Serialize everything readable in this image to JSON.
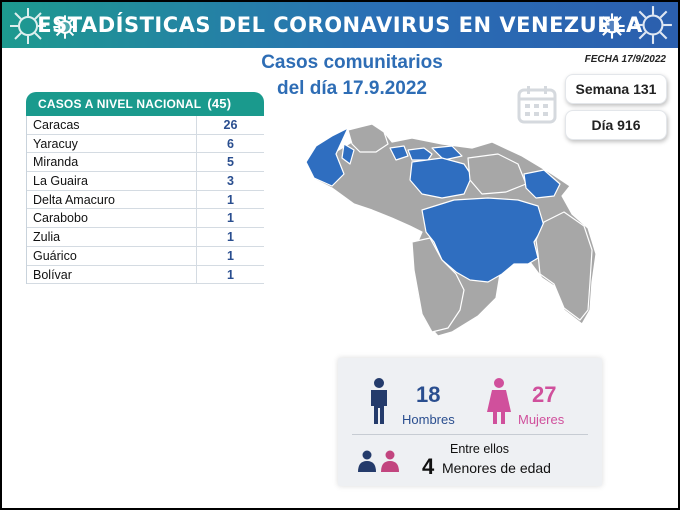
{
  "header": {
    "title": "ESTADÍSTICAS DEL CORONAVIRUS EN VENEZUELA"
  },
  "fecha": "FECHA 17/9/2022",
  "main_title": {
    "line1": "Casos comunitarios",
    "line2": "del día 17.9.2022"
  },
  "table": {
    "header": "CASOS A NIVEL NACIONAL",
    "total": "(45)",
    "rows": [
      {
        "name": "Caracas",
        "value": "26"
      },
      {
        "name": "Yaracuy",
        "value": "6"
      },
      {
        "name": "Miranda",
        "value": "5"
      },
      {
        "name": "La Guaira",
        "value": "3"
      },
      {
        "name": "Delta Amacuro",
        "value": "1"
      },
      {
        "name": "Carabobo",
        "value": "1"
      },
      {
        "name": "Zulia",
        "value": "1"
      },
      {
        "name": "Guárico",
        "value": "1"
      },
      {
        "name": "Bolívar",
        "value": "1"
      }
    ]
  },
  "week": {
    "semana": "Semana 131",
    "dia": "Día 916"
  },
  "stats": {
    "hombres_num": "18",
    "hombres_label": "Hombres",
    "mujeres_num": "27",
    "mujeres_label": "Mujeres",
    "entre": "Entre ellos",
    "menores_num": "4",
    "menores_label": "Menores de edad"
  },
  "colors": {
    "header_start": "#1d9a8f",
    "header_end": "#2b5fae",
    "table_header": "#1a9a8d",
    "highlight_state": "#2f6ec0",
    "other_state": "#a7a7a7",
    "hombres": "#2a4e8f",
    "mujeres": "#d0509c"
  },
  "icons": [
    "virus-icon",
    "calendar-icon",
    "man-icon",
    "woman-icon",
    "children-icon"
  ]
}
